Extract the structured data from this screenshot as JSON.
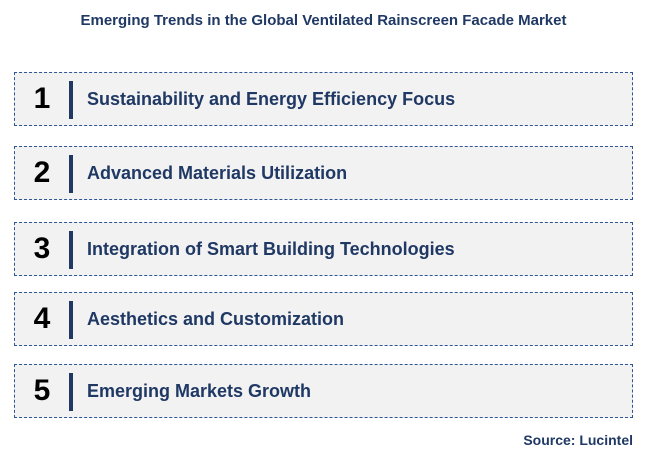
{
  "title": "Emerging Trends in the Global Ventilated Rainscreen Facade Market",
  "trends": [
    {
      "number": "1",
      "label": "Sustainability and Energy Efficiency Focus"
    },
    {
      "number": "2",
      "label": "Advanced Materials Utilization"
    },
    {
      "number": "3",
      "label": "Integration of Smart Building Technologies"
    },
    {
      "number": "4",
      "label": "Aesthetics and Customization"
    },
    {
      "number": "5",
      "label": "Emerging Markets Growth"
    }
  ],
  "source": "Source: Lucintel",
  "colors": {
    "accent": "#1f3864",
    "border": "#2f5597",
    "box_fill": "#f2f2f2"
  }
}
